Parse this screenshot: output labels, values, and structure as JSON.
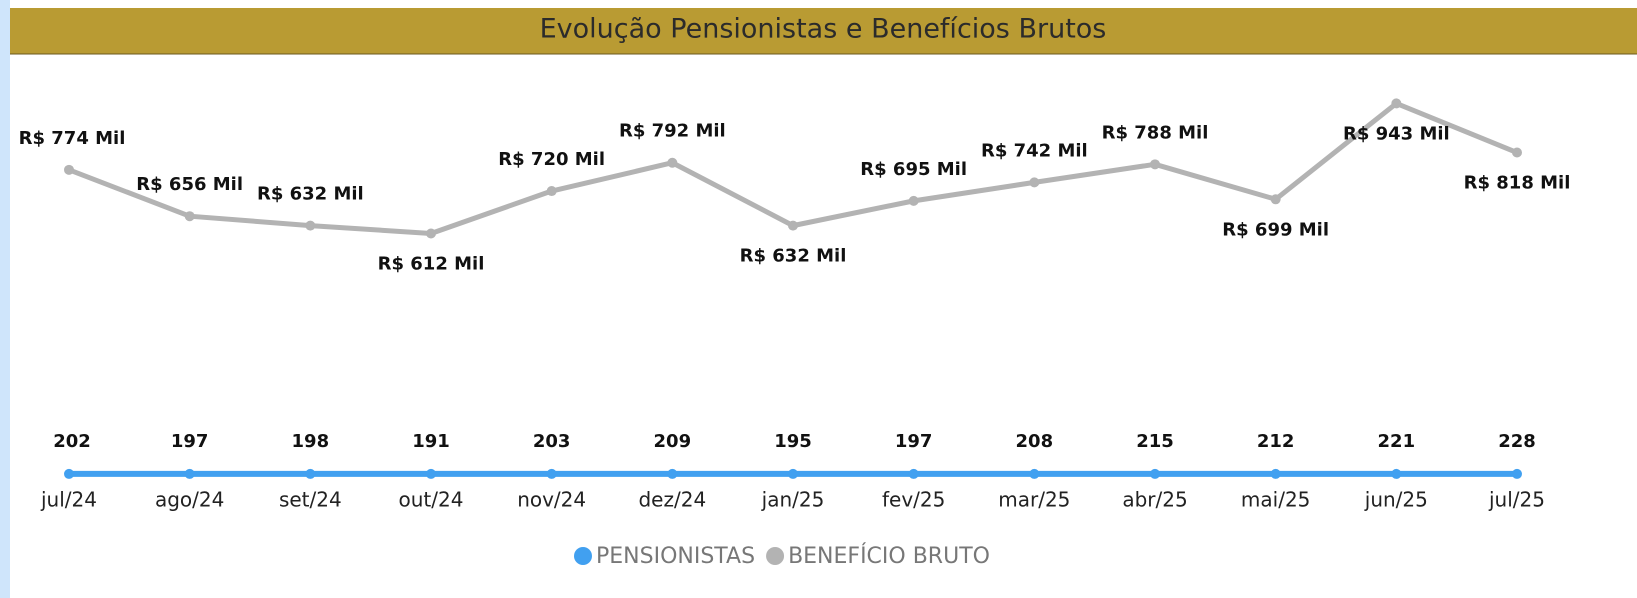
{
  "chart_data": {
    "type": "line",
    "title": "Evolução Pensionistas e Benefícios Brutos",
    "categories": [
      "jul/24",
      "ago/24",
      "set/24",
      "out/24",
      "nov/24",
      "dez/24",
      "jan/25",
      "fev/25",
      "mar/25",
      "abr/25",
      "mai/25",
      "jun/25",
      "jul/25"
    ],
    "ylim": [
      0,
      1000000
    ],
    "series": [
      {
        "name": "PENSIONISTAS",
        "color": "#41a0f0",
        "values": [
          202,
          197,
          198,
          191,
          203,
          209,
          195,
          197,
          208,
          215,
          212,
          221,
          228
        ]
      },
      {
        "name": "BENEFÍCIO BRUTO",
        "color": "#b3b3b3",
        "values": [
          774000,
          656000,
          632000,
          612000,
          720000,
          792000,
          632000,
          695000,
          742000,
          788000,
          699000,
          943000,
          818000
        ],
        "value_labels": [
          "R$ 774 Mil",
          "R$ 656 Mil",
          "R$ 632 Mil",
          "R$ 612 Mil",
          "R$ 720 Mil",
          "R$ 792 Mil",
          "R$ 632 Mil",
          "R$ 695 Mil",
          "R$ 742 Mil",
          "R$ 788 Mil",
          "R$ 699 Mil",
          "R$ 943 Mil",
          "R$ 818 Mil"
        ]
      }
    ],
    "legend": "bottom"
  }
}
